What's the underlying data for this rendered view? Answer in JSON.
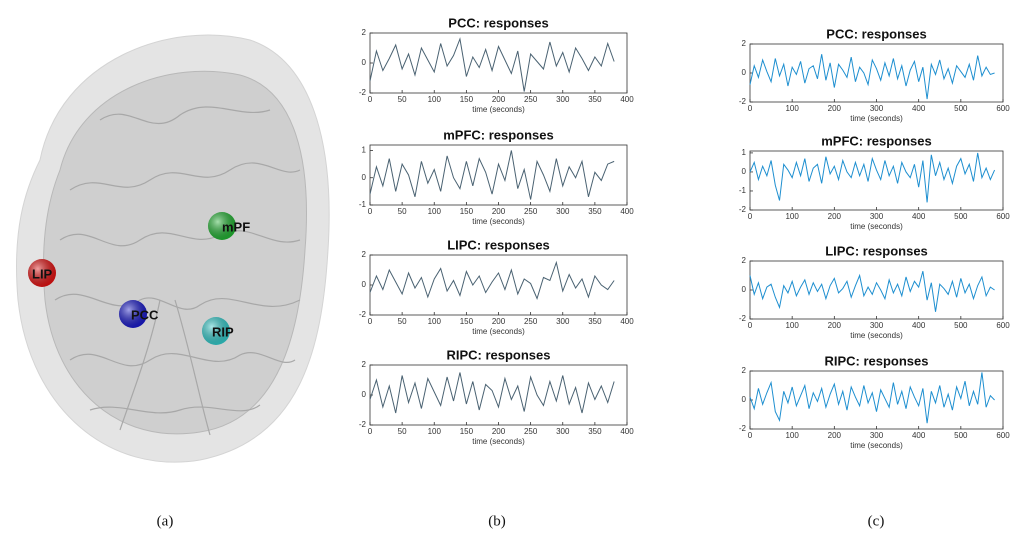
{
  "brain": {
    "nodes": [
      {
        "label": "LIP",
        "color": "#e01010"
      },
      {
        "label": "PCC",
        "color": "#1818c8"
      },
      {
        "label": "mPF",
        "color": "#20b030"
      },
      {
        "label": "RIP",
        "color": "#30c8c8"
      }
    ]
  },
  "panel_labels": [
    "(a)",
    "(b)",
    "(c)"
  ],
  "chart_data": [
    {
      "type": "line",
      "title": "PCC: responses",
      "x_label": "time (seconds)",
      "color": "#4a6272",
      "x": [
        0,
        10,
        20,
        30,
        40,
        50,
        60,
        70,
        80,
        90,
        100,
        110,
        120,
        130,
        140,
        150,
        160,
        170,
        180,
        190,
        200,
        210,
        220,
        230,
        240,
        250,
        260,
        270,
        280,
        290,
        300,
        310,
        320,
        330,
        340,
        350,
        360,
        370,
        380
      ],
      "values": [
        -1.2,
        0.8,
        -0.5,
        0.3,
        1.2,
        -0.4,
        0.6,
        -0.8,
        1.0,
        0.2,
        -0.6,
        1.3,
        -0.2,
        0.5,
        1.6,
        -0.9,
        0.4,
        -0.3,
        0.9,
        -0.5,
        1.1,
        0.2,
        -0.7,
        0.8,
        -1.9,
        0.6,
        0.1,
        -0.4,
        1.4,
        -0.2,
        0.7,
        -0.6,
        1.0,
        0.3,
        -0.5,
        0.4,
        -0.2,
        1.3,
        0.1
      ],
      "xlim": [
        0,
        400
      ],
      "xticks": [
        0,
        50,
        100,
        150,
        200,
        250,
        300,
        350,
        400
      ],
      "ylim": [
        -2,
        2
      ],
      "yticks": [
        -2,
        0,
        2
      ]
    },
    {
      "type": "line",
      "title": "mPFC: responses",
      "x_label": "time (seconds)",
      "color": "#4a6272",
      "x": [
        0,
        10,
        20,
        30,
        40,
        50,
        60,
        70,
        80,
        90,
        100,
        110,
        120,
        130,
        140,
        150,
        160,
        170,
        180,
        190,
        200,
        210,
        220,
        230,
        240,
        250,
        260,
        270,
        280,
        290,
        300,
        310,
        320,
        330,
        340,
        350,
        360,
        370,
        380
      ],
      "values": [
        -0.6,
        0.4,
        -0.3,
        0.7,
        -0.5,
        0.5,
        0.1,
        -0.7,
        0.6,
        -0.2,
        0.3,
        -0.5,
        0.8,
        0.0,
        -0.4,
        0.6,
        -0.3,
        0.7,
        0.2,
        -0.6,
        0.5,
        -0.1,
        1.0,
        -0.4,
        0.3,
        -0.8,
        0.6,
        0.1,
        -0.5,
        0.7,
        -0.3,
        0.4,
        0.0,
        0.6,
        -0.7,
        0.2,
        -0.1,
        0.5,
        0.6
      ],
      "xlim": [
        0,
        400
      ],
      "xticks": [
        0,
        50,
        100,
        150,
        200,
        250,
        300,
        350,
        400
      ],
      "ylim": [
        -1,
        1.2
      ],
      "yticks": [
        -1,
        0,
        1
      ]
    },
    {
      "type": "line",
      "title": "LIPC: responses",
      "x_label": "time (seconds)",
      "color": "#4a6272",
      "x": [
        0,
        10,
        20,
        30,
        40,
        50,
        60,
        70,
        80,
        90,
        100,
        110,
        120,
        130,
        140,
        150,
        160,
        170,
        180,
        190,
        200,
        210,
        220,
        230,
        240,
        250,
        260,
        270,
        280,
        290,
        300,
        310,
        320,
        330,
        340,
        350,
        360,
        370,
        380
      ],
      "values": [
        -0.5,
        0.6,
        -0.3,
        1.0,
        0.2,
        -0.6,
        0.8,
        -0.2,
        0.5,
        -0.8,
        0.4,
        1.1,
        -0.4,
        0.3,
        -0.7,
        0.9,
        0.0,
        0.6,
        -0.5,
        0.2,
        0.8,
        -0.3,
        1.0,
        -0.6,
        0.4,
        0.1,
        -0.9,
        0.5,
        0.3,
        1.5,
        -0.4,
        0.7,
        -0.2,
        0.4,
        -0.8,
        0.6,
        0.0,
        -0.3,
        0.3
      ],
      "xlim": [
        0,
        400
      ],
      "xticks": [
        0,
        50,
        100,
        150,
        200,
        250,
        300,
        350,
        400
      ],
      "ylim": [
        -2,
        2
      ],
      "yticks": [
        -2,
        0,
        2
      ]
    },
    {
      "type": "line",
      "title": "RIPC: responses",
      "x_label": "time (seconds)",
      "color": "#4a6272",
      "x": [
        0,
        10,
        20,
        30,
        40,
        50,
        60,
        70,
        80,
        90,
        100,
        110,
        120,
        130,
        140,
        150,
        160,
        170,
        180,
        190,
        200,
        210,
        220,
        230,
        240,
        250,
        260,
        270,
        280,
        290,
        300,
        310,
        320,
        330,
        340,
        350,
        360,
        370,
        380
      ],
      "values": [
        -0.3,
        1.0,
        -0.8,
        0.6,
        -1.2,
        1.3,
        -0.5,
        0.8,
        -0.9,
        1.1,
        0.2,
        -0.7,
        1.2,
        -0.4,
        1.5,
        -0.6,
        0.9,
        -1.0,
        0.7,
        0.3,
        -0.8,
        1.1,
        -0.3,
        0.6,
        -1.1,
        1.2,
        0.0,
        -0.7,
        0.9,
        -0.4,
        1.3,
        -0.6,
        0.5,
        -1.2,
        0.8,
        -0.3,
        0.6,
        -0.5,
        0.9
      ],
      "xlim": [
        0,
        400
      ],
      "xticks": [
        0,
        50,
        100,
        150,
        200,
        250,
        300,
        350,
        400
      ],
      "ylim": [
        -2,
        2
      ],
      "yticks": [
        -2,
        0,
        2
      ]
    },
    {
      "type": "line",
      "title": "PCC: responses",
      "x_label": "time (seconds)",
      "color": "#1e8fd0",
      "x": [
        0,
        10,
        20,
        30,
        40,
        50,
        60,
        70,
        80,
        90,
        100,
        110,
        120,
        130,
        140,
        150,
        160,
        170,
        180,
        190,
        200,
        210,
        220,
        230,
        240,
        250,
        260,
        270,
        280,
        290,
        300,
        310,
        320,
        330,
        340,
        350,
        360,
        370,
        380,
        390,
        400,
        410,
        420,
        430,
        440,
        450,
        460,
        470,
        480,
        490,
        500,
        510,
        520,
        530,
        540,
        550,
        560,
        570,
        580
      ],
      "values": [
        -0.8,
        0.5,
        -0.3,
        0.9,
        0.1,
        -0.6,
        1.0,
        -0.2,
        0.6,
        -0.9,
        0.4,
        -0.1,
        0.8,
        -0.7,
        0.3,
        0.5,
        -0.4,
        1.3,
        -0.5,
        0.7,
        -1.0,
        0.6,
        0.2,
        -0.3,
        1.1,
        -0.6,
        0.4,
        0.0,
        -0.8,
        0.9,
        0.3,
        -0.5,
        0.7,
        -0.2,
        1.0,
        -0.4,
        0.5,
        -0.9,
        0.2,
        0.8,
        -0.6,
        0.4,
        -1.8,
        0.6,
        -0.1,
        0.9,
        -0.4,
        0.3,
        -0.7,
        0.5,
        0.1,
        -0.3,
        0.6,
        -0.5,
        1.2,
        -0.2,
        0.4,
        -0.1,
        0.0
      ],
      "xlim": [
        0,
        600
      ],
      "xticks": [
        0,
        100,
        200,
        300,
        400,
        500,
        600
      ],
      "ylim": [
        -2,
        2
      ],
      "yticks": [
        -2,
        0,
        2
      ]
    },
    {
      "type": "line",
      "title": "mPFC: responses",
      "x_label": "time (seconds)",
      "color": "#1e8fd0",
      "x": [
        0,
        10,
        20,
        30,
        40,
        50,
        60,
        70,
        80,
        90,
        100,
        110,
        120,
        130,
        140,
        150,
        160,
        170,
        180,
        190,
        200,
        210,
        220,
        230,
        240,
        250,
        260,
        270,
        280,
        290,
        300,
        310,
        320,
        330,
        340,
        350,
        360,
        370,
        380,
        390,
        400,
        410,
        420,
        430,
        440,
        450,
        460,
        470,
        480,
        490,
        500,
        510,
        520,
        530,
        540,
        550,
        560,
        570,
        580
      ],
      "values": [
        0.0,
        0.5,
        -0.4,
        0.3,
        -0.2,
        0.6,
        -0.7,
        -1.5,
        0.4,
        0.1,
        -0.3,
        0.5,
        -0.2,
        0.7,
        -0.5,
        0.2,
        0.4,
        -0.6,
        0.8,
        -0.1,
        0.3,
        -0.4,
        0.6,
        0.0,
        -0.3,
        0.5,
        -0.2,
        0.4,
        -0.5,
        0.7,
        0.1,
        -0.4,
        0.6,
        -0.2,
        0.3,
        -0.6,
        0.5,
        0.0,
        -0.3,
        0.4,
        -0.8,
        0.6,
        -1.6,
        0.9,
        -0.2,
        0.5,
        -0.4,
        0.2,
        -0.6,
        0.3,
        0.7,
        -0.1,
        0.4,
        -0.5,
        1.0,
        -0.3,
        0.2,
        -0.4,
        0.1
      ],
      "xlim": [
        0,
        600
      ],
      "xticks": [
        0,
        100,
        200,
        300,
        400,
        500,
        600
      ],
      "ylim": [
        -2,
        1.1
      ],
      "yticks": [
        -2,
        -1,
        0,
        1
      ]
    },
    {
      "type": "line",
      "title": "LIPC: responses",
      "x_label": "time (seconds)",
      "color": "#1e8fd0",
      "x": [
        0,
        10,
        20,
        30,
        40,
        50,
        60,
        70,
        80,
        90,
        100,
        110,
        120,
        130,
        140,
        150,
        160,
        170,
        180,
        190,
        200,
        210,
        220,
        230,
        240,
        250,
        260,
        270,
        280,
        290,
        300,
        310,
        320,
        330,
        340,
        350,
        360,
        370,
        380,
        390,
        400,
        410,
        420,
        430,
        440,
        450,
        460,
        470,
        480,
        490,
        500,
        510,
        520,
        530,
        540,
        550,
        560,
        570,
        580
      ],
      "values": [
        1.0,
        -0.3,
        0.5,
        -0.6,
        0.2,
        0.4,
        -0.5,
        -1.2,
        0.3,
        -0.2,
        0.6,
        -0.4,
        0.2,
        0.7,
        -0.3,
        0.5,
        -0.1,
        0.4,
        -0.6,
        0.3,
        0.8,
        -0.2,
        0.1,
        0.6,
        -0.5,
        0.3,
        1.0,
        -0.4,
        0.2,
        -0.3,
        0.5,
        0.0,
        -0.6,
        0.7,
        -0.2,
        0.4,
        -0.4,
        0.9,
        -0.1,
        0.6,
        0.2,
        1.3,
        -0.7,
        0.5,
        -1.5,
        0.4,
        0.1,
        -0.3,
        0.6,
        -0.5,
        0.8,
        -0.2,
        0.4,
        -0.6,
        0.3,
        0.9,
        -0.4,
        0.2,
        0.0
      ],
      "xlim": [
        0,
        600
      ],
      "xticks": [
        0,
        100,
        200,
        300,
        400,
        500,
        600
      ],
      "ylim": [
        -2,
        2
      ],
      "yticks": [
        -2,
        0,
        2
      ]
    },
    {
      "type": "line",
      "title": "RIPC: responses",
      "x_label": "time (seconds)",
      "color": "#1e8fd0",
      "x": [
        0,
        10,
        20,
        30,
        40,
        50,
        60,
        70,
        80,
        90,
        100,
        110,
        120,
        130,
        140,
        150,
        160,
        170,
        180,
        190,
        200,
        210,
        220,
        230,
        240,
        250,
        260,
        270,
        280,
        290,
        300,
        310,
        320,
        330,
        340,
        350,
        360,
        370,
        380,
        390,
        400,
        410,
        420,
        430,
        440,
        450,
        460,
        470,
        480,
        490,
        500,
        510,
        520,
        530,
        540,
        550,
        560,
        570,
        580
      ],
      "values": [
        0.2,
        -0.6,
        0.8,
        -0.3,
        0.5,
        1.2,
        -0.8,
        -1.4,
        0.6,
        -0.2,
        0.9,
        -0.4,
        0.3,
        1.0,
        -0.6,
        0.5,
        -0.1,
        0.8,
        -0.5,
        0.4,
        1.1,
        -0.3,
        0.6,
        -0.7,
        0.9,
        0.2,
        -0.4,
        1.0,
        -0.2,
        0.5,
        -0.8,
        0.7,
        0.1,
        -0.5,
        1.2,
        -0.3,
        0.6,
        -0.6,
        0.9,
        0.2,
        -0.4,
        0.8,
        -1.6,
        0.6,
        -0.2,
        1.0,
        -0.5,
        0.4,
        -0.7,
        0.9,
        0.1,
        1.3,
        -0.4,
        0.6,
        -0.3,
        1.9,
        -0.5,
        0.3,
        0.0
      ],
      "xlim": [
        0,
        600
      ],
      "xticks": [
        0,
        100,
        200,
        300,
        400,
        500,
        600
      ],
      "ylim": [
        -2,
        2
      ],
      "yticks": [
        -2,
        0,
        2
      ]
    }
  ]
}
